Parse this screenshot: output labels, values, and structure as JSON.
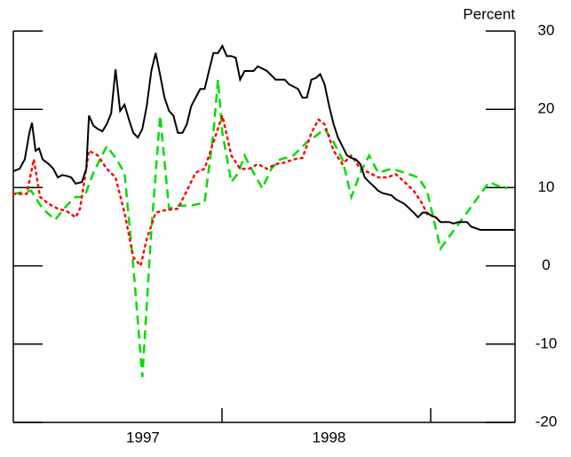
{
  "chart_data": {
    "type": "line",
    "y_label": "Percent",
    "xlim": [
      1997,
      1999.4
    ],
    "ylim": [
      -20,
      30
    ],
    "yticks": [
      -20,
      -10,
      0,
      10,
      20,
      30
    ],
    "xticks": [
      {
        "value": 1997.62,
        "label": "1997"
      },
      {
        "value": 1998.51,
        "label": "1998"
      }
    ],
    "series": [
      {
        "color": "#000000",
        "style": "solid",
        "x": [
          1997.0,
          1997.03,
          1997.055,
          1997.077,
          1997.089,
          1997.106,
          1997.123,
          1997.14,
          1997.17,
          1997.191,
          1997.213,
          1997.234,
          1997.255,
          1997.277,
          1997.298,
          1997.328,
          1997.349,
          1997.362,
          1997.383,
          1997.404,
          1997.426,
          1997.447,
          1997.468,
          1997.489,
          1997.511,
          1997.532,
          1997.553,
          1997.574,
          1997.596,
          1997.617,
          1997.638,
          1997.66,
          1997.681,
          1997.702,
          1997.723,
          1997.745,
          1997.766,
          1997.787,
          1997.809,
          1997.83,
          1997.851,
          1997.872,
          1997.894,
          1997.915,
          1997.936,
          1997.957,
          1997.979,
          1998.0,
          1998.021,
          1998.043,
          1998.064,
          1998.085,
          1998.106,
          1998.149,
          1998.17,
          1998.213,
          1998.255,
          1998.298,
          1998.319,
          1998.362,
          1998.383,
          1998.404,
          1998.426,
          1998.447,
          1998.468,
          1998.489,
          1998.511,
          1998.532,
          1998.553,
          1998.574,
          1998.596,
          1998.617,
          1998.638,
          1998.66,
          1998.681,
          1998.702,
          1998.723,
          1998.745,
          1998.766,
          1998.809,
          1998.83,
          1998.872,
          1998.915,
          1998.936,
          1998.957,
          1998.979,
          1999.0,
          1999.021,
          1999.043,
          1999.064,
          1999.085,
          1999.106,
          1999.128,
          1999.17,
          1999.191,
          1999.234,
          1999.396
        ],
        "values": [
          12.1,
          12.4,
          13.6,
          17.0,
          18.3,
          14.7,
          15.0,
          13.6,
          13.0,
          12.4,
          11.3,
          11.6,
          11.5,
          11.3,
          10.5,
          10.7,
          12.4,
          19.2,
          17.9,
          17.5,
          17.2,
          18.1,
          19.5,
          25.1,
          19.8,
          20.6,
          18.7,
          17.0,
          16.4,
          17.5,
          20.4,
          24.9,
          27.2,
          24.4,
          21.5,
          19.8,
          19.2,
          17.0,
          17.0,
          18.1,
          20.4,
          21.5,
          22.6,
          22.6,
          24.9,
          27.2,
          27.2,
          28.1,
          26.8,
          26.8,
          26.6,
          23.8,
          24.9,
          24.9,
          25.5,
          24.9,
          23.8,
          23.8,
          23.2,
          22.6,
          21.5,
          21.5,
          23.8,
          24.0,
          24.5,
          23.2,
          20.4,
          18.1,
          16.4,
          15.3,
          14.1,
          13.8,
          13.6,
          13.0,
          11.3,
          10.7,
          10.2,
          9.6,
          9.3,
          9.0,
          8.5,
          7.9,
          6.8,
          6.2,
          6.8,
          6.8,
          6.4,
          6.2,
          5.6,
          5.6,
          5.6,
          5.4,
          5.6,
          5.6,
          5.0,
          4.6,
          4.6
        ]
      },
      {
        "color": "#ff0000",
        "style": "dotted",
        "x": [
          1997.0,
          1997.064,
          1997.098,
          1997.128,
          1997.17,
          1997.213,
          1997.255,
          1997.298,
          1997.319,
          1997.362,
          1997.404,
          1997.447,
          1997.489,
          1997.532,
          1997.574,
          1997.609,
          1997.638,
          1997.681,
          1997.723,
          1997.787,
          1997.83,
          1997.872,
          1997.915,
          1997.957,
          1998.0,
          1998.043,
          1998.085,
          1998.128,
          1998.17,
          1998.213,
          1998.255,
          1998.298,
          1998.34,
          1998.383,
          1998.426,
          1998.46,
          1998.489,
          1998.532,
          1998.574,
          1998.617,
          1998.66,
          1998.702,
          1998.745,
          1998.787,
          1998.83,
          1998.872,
          1998.915,
          1998.957,
          1998.987
        ],
        "values": [
          9.2,
          9.2,
          13.6,
          8.8,
          7.9,
          7.3,
          7.0,
          6.2,
          7.3,
          14.7,
          14.1,
          12.4,
          11.3,
          6.8,
          1.1,
          0,
          3.4,
          6.8,
          7.1,
          7.3,
          9.6,
          11.9,
          12.4,
          15.8,
          19.2,
          14.1,
          12.4,
          12.4,
          13.0,
          12.4,
          13.0,
          13.2,
          13.6,
          13.8,
          17.0,
          18.7,
          18.1,
          14.7,
          13.0,
          14.1,
          12.4,
          11.9,
          11.3,
          11.3,
          11.7,
          10.7,
          9.6,
          7.9,
          6.2
        ]
      },
      {
        "color": "#00dd00",
        "style": "dashed",
        "x": [
          1997.0,
          1997.085,
          1997.14,
          1997.2,
          1997.255,
          1997.298,
          1997.34,
          1997.383,
          1997.447,
          1997.489,
          1997.532,
          1997.574,
          1997.617,
          1997.66,
          1997.702,
          1997.745,
          1997.787,
          1997.851,
          1997.915,
          1997.957,
          1997.979,
          1998.0,
          1998.043,
          1998.077,
          1998.106,
          1998.149,
          1998.191,
          1998.234,
          1998.277,
          1998.34,
          1998.404,
          1998.447,
          1998.489,
          1998.532,
          1998.574,
          1998.617,
          1998.66,
          1998.702,
          1998.745,
          1998.809,
          1998.872,
          1998.936,
          1998.979,
          1999.043,
          1999.106,
          1999.17,
          1999.234,
          1999.277,
          1999.319,
          1999.362
        ],
        "values": [
          9.2,
          9.6,
          7.3,
          5.9,
          7.7,
          8.8,
          8.8,
          11.9,
          15.3,
          13.8,
          11.9,
          0,
          -14.2,
          4.5,
          19.2,
          7.3,
          7.7,
          7.7,
          8.1,
          17.0,
          23.8,
          17.0,
          10.7,
          11.9,
          14.1,
          11.9,
          9.9,
          12.4,
          13.6,
          14.1,
          15.8,
          16.6,
          17.5,
          15.8,
          13.6,
          8.8,
          11.9,
          14.1,
          11.9,
          12.4,
          11.9,
          11.3,
          9.6,
          2.2,
          4.5,
          6.8,
          9.2,
          10.7,
          10.2,
          9.9
        ]
      }
    ]
  }
}
